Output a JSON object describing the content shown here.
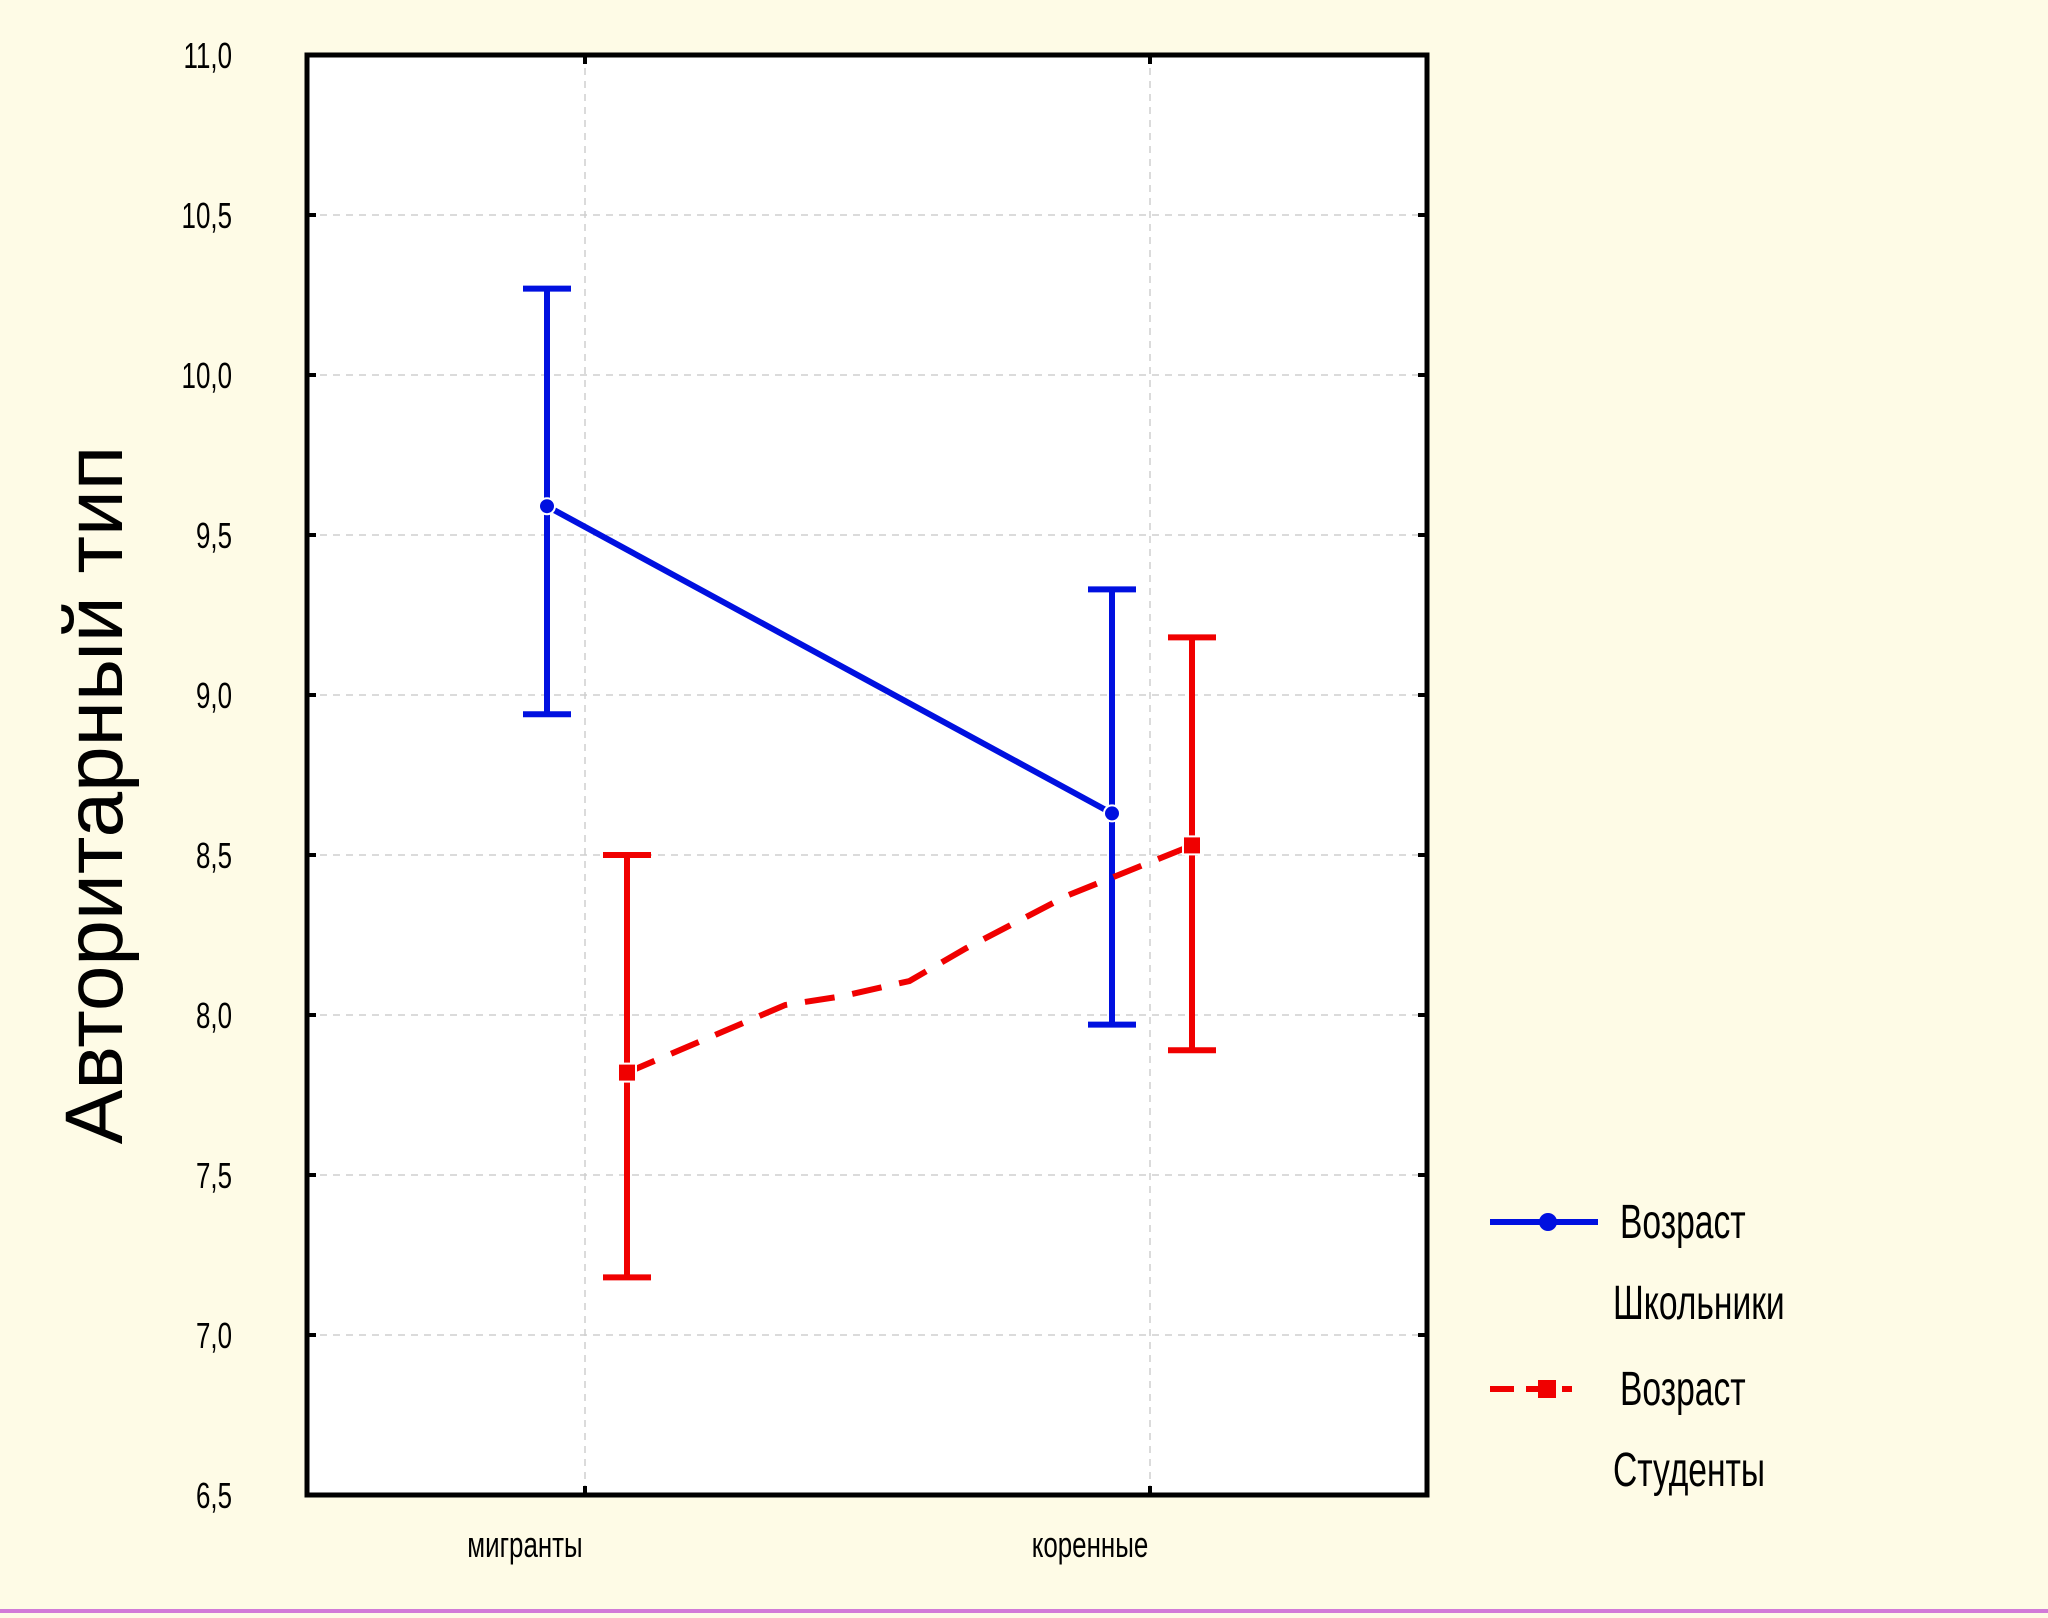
{
  "chart_data": {
    "type": "line",
    "title": "",
    "ylabel": "Авторитарный тип",
    "xlabel": "",
    "categories": [
      "мигранты",
      "коренные"
    ],
    "ylim": [
      6.5,
      11.0
    ],
    "yticks": [
      "6,5",
      "7,0",
      "7,5",
      "8,0",
      "8,5",
      "9,0",
      "9,5",
      "10,0",
      "10,5",
      "11,0"
    ],
    "grid": true,
    "legend_position": "right-bottom",
    "series": [
      {
        "name": "Возраст Школьники",
        "legend_line1": "Возраст",
        "legend_line2": "Школьники",
        "color": "#0010e0",
        "marker": "circle",
        "line_style": "solid",
        "values": [
          9.59,
          8.63
        ],
        "ci_low": [
          8.94,
          7.97
        ],
        "ci_high": [
          10.27,
          9.33
        ]
      },
      {
        "name": "Возраст Студенты",
        "legend_line1": "Возраст",
        "legend_line2": "Студенты",
        "color": "#f00000",
        "marker": "square",
        "line_style": "dashed",
        "values": [
          7.82,
          8.53
        ],
        "ci_low": [
          7.18,
          7.89
        ],
        "ci_high": [
          8.5,
          9.18
        ]
      }
    ]
  }
}
